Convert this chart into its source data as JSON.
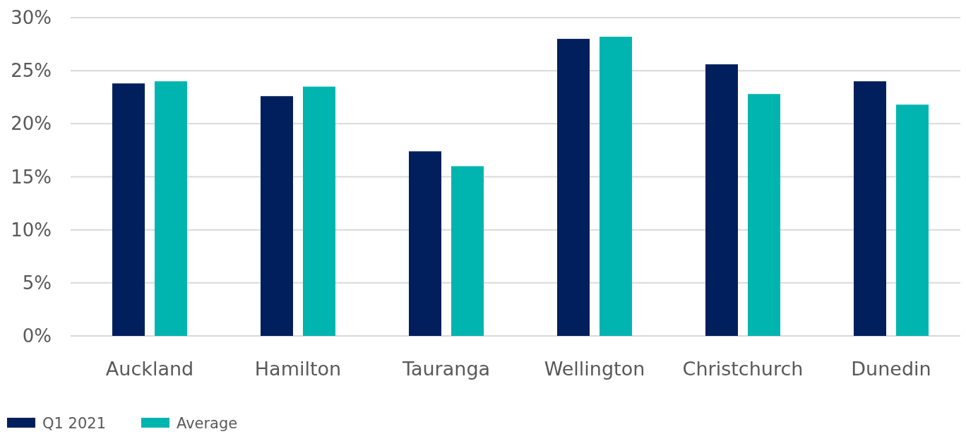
{
  "chart_data": {
    "type": "bar",
    "categories": [
      "Auckland",
      "Hamilton",
      "Tauranga",
      "Wellington",
      "Christchurch",
      "Dunedin"
    ],
    "series": [
      {
        "name": "Q1 2021",
        "color": "#001f5c",
        "values": [
          23.8,
          22.6,
          17.4,
          28.0,
          25.6,
          24.0
        ]
      },
      {
        "name": "Average",
        "color": "#00b5b0",
        "values": [
          24.0,
          23.5,
          16.0,
          28.2,
          22.8,
          21.8
        ]
      }
    ],
    "ylim": [
      0,
      30
    ],
    "yticks": [
      {
        "value": 0,
        "label": "0%"
      },
      {
        "value": 5,
        "label": "5%"
      },
      {
        "value": 10,
        "label": "10%"
      },
      {
        "value": 15,
        "label": "15%"
      },
      {
        "value": 20,
        "label": "20%"
      },
      {
        "value": 25,
        "label": "25%"
      },
      {
        "value": 30,
        "label": "30%"
      }
    ],
    "grid": "y",
    "legend": "bottom left"
  }
}
